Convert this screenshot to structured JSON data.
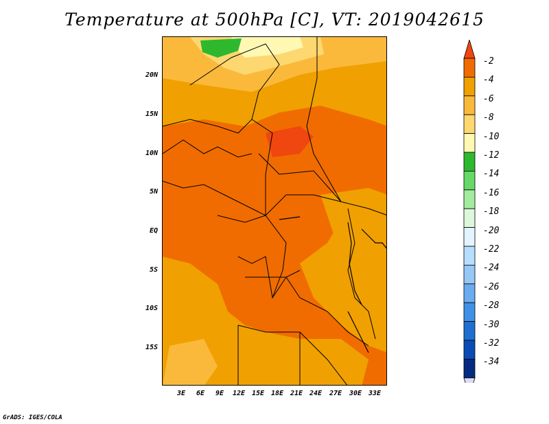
{
  "title": "Temperature at 500hPa [C], VT: 2019042615",
  "credit": "GrADS: IGES/COLA",
  "map": {
    "lat_labels": [
      "20N",
      "15N",
      "10N",
      "5N",
      "EQ",
      "5S",
      "10S",
      "15S"
    ],
    "lon_labels": [
      "3E",
      "6E",
      "9E",
      "12E",
      "15E",
      "18E",
      "21E",
      "24E",
      "27E",
      "30E",
      "33E"
    ]
  },
  "colorbar": {
    "labels": [
      "-2",
      "-4",
      "-6",
      "-8",
      "-10",
      "-12",
      "-14",
      "-16",
      "-18",
      "-20",
      "-22",
      "-24",
      "-26",
      "-28",
      "-30",
      "-32",
      "-34"
    ],
    "colors": [
      "#f04610",
      "#f06c00",
      "#f0a000",
      "#fbb93c",
      "#fdd870",
      "#fff8b3",
      "#2eb82e",
      "#66d966",
      "#a3eb9e",
      "#ddf7dd",
      "#e4f5ff",
      "#b6deff",
      "#96c8f6",
      "#6aacf0",
      "#4091e6",
      "#1f6fd0",
      "#0a4cb4",
      "#062a80",
      "#12106e"
    ]
  }
}
